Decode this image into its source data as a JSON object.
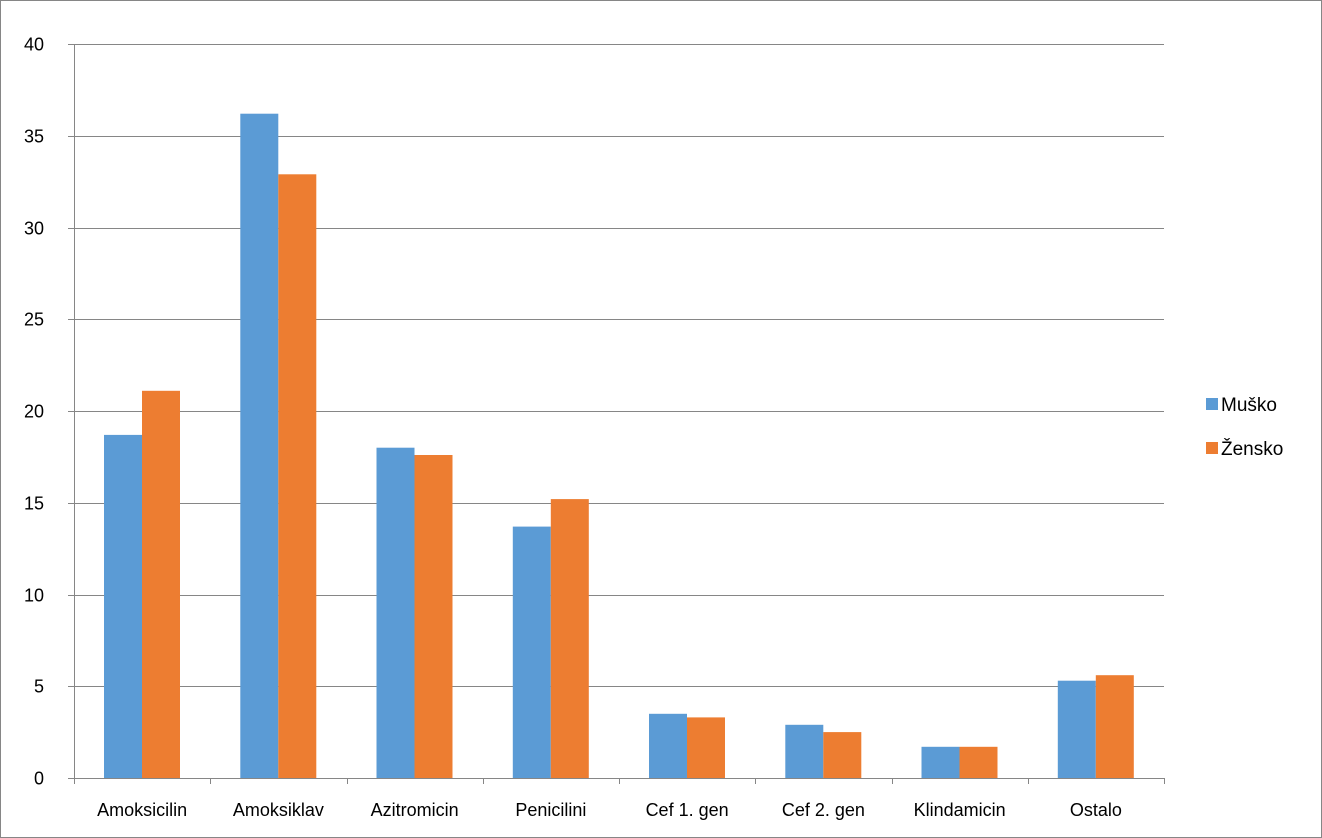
{
  "chart_data": {
    "type": "bar",
    "title": "",
    "xlabel": "",
    "ylabel": "",
    "ylim": [
      0,
      40
    ],
    "yticks": [
      0,
      5,
      10,
      15,
      20,
      25,
      30,
      35,
      40
    ],
    "grid": true,
    "legend_position": "right",
    "categories": [
      "Amoksicilin",
      "Amoksiklav",
      "Azitromicin",
      "Penicilini",
      "Cef 1. gen",
      "Cef 2. gen",
      "Klindamicin",
      "Ostalo"
    ],
    "series": [
      {
        "name": "Muško",
        "color": "#5B9BD5",
        "values": [
          18.7,
          36.2,
          18.0,
          13.7,
          3.5,
          2.9,
          1.7,
          5.3
        ]
      },
      {
        "name": "Žensko",
        "color": "#ED7D31",
        "values": [
          21.1,
          32.9,
          17.6,
          15.2,
          3.3,
          2.5,
          1.7,
          5.6
        ]
      }
    ]
  }
}
